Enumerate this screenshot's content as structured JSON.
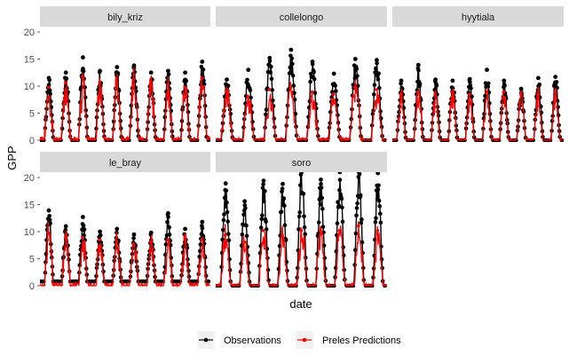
{
  "chart_data": {
    "type": "line",
    "xlabel": "date",
    "ylabel": "GPP",
    "ylim": [
      0,
      20
    ],
    "y_ticks": [
      "0",
      "5",
      "10",
      "15",
      "20"
    ],
    "x_tick_labels": false,
    "grid": false,
    "legend_position": "bottom",
    "legend": [
      {
        "name": "Observations",
        "color": "#000000"
      },
      {
        "name": "Preles Predictions",
        "color": "#ff0000"
      }
    ],
    "panels": [
      {
        "site": "bily_kriz",
        "years": 10,
        "obs_peaks": [
          11.5,
          12.5,
          15.3,
          12.8,
          13.5,
          13.8,
          12.5,
          12.8,
          12.5,
          14.5
        ],
        "pred_peaks": [
          11.5,
          12.5,
          13.8,
          12.5,
          12.5,
          13.2,
          13.0,
          12.0,
          11.5,
          13.5
        ],
        "obs_winter": 0,
        "pred_noise": 3.5
      },
      {
        "site": "collelongo",
        "years": 8,
        "obs_peaks": [
          11.2,
          13.0,
          15.2,
          16.7,
          14.5,
          12.3,
          15.0,
          14.8
        ],
        "pred_peaks": [
          10.5,
          9.5,
          11.0,
          11.5,
          10.5,
          10.0,
          11.5,
          11.0
        ],
        "obs_winter": 0,
        "pred_noise": 2.5
      },
      {
        "site": "hyytiala",
        "years": 10,
        "obs_peaks": [
          11.0,
          13.9,
          11.2,
          11.0,
          11.3,
          13.0,
          11.0,
          9.5,
          11.5,
          11.7
        ],
        "pred_peaks": [
          10.0,
          10.5,
          10.0,
          10.5,
          10.0,
          10.5,
          10.5,
          10.0,
          10.0,
          10.5
        ],
        "obs_winter": 0,
        "pred_noise": 1.2
      },
      {
        "site": "le_bray",
        "years": 10,
        "obs_peaks": [
          13.9,
          11.0,
          12.7,
          10.0,
          10.5,
          9.5,
          9.8,
          13.4,
          10.5,
          11.8
        ],
        "pred_peaks": [
          11.5,
          10.5,
          10.5,
          10.0,
          9.5,
          9.0,
          9.5,
          10.0,
          10.5,
          10.0
        ],
        "obs_winter": 0.8,
        "pred_noise": 3.0
      },
      {
        "site": "soro",
        "years": 9,
        "obs_peaks": [
          18.9,
          15.6,
          19.4,
          18.8,
          22.0,
          19.6,
          21.0,
          21.2,
          20.8
        ],
        "pred_peaks": [
          11.0,
          9.5,
          12.0,
          11.0,
          12.0,
          12.0,
          12.0,
          13.0,
          12.0
        ],
        "obs_winter": 0,
        "pred_noise": 2.0
      }
    ]
  }
}
